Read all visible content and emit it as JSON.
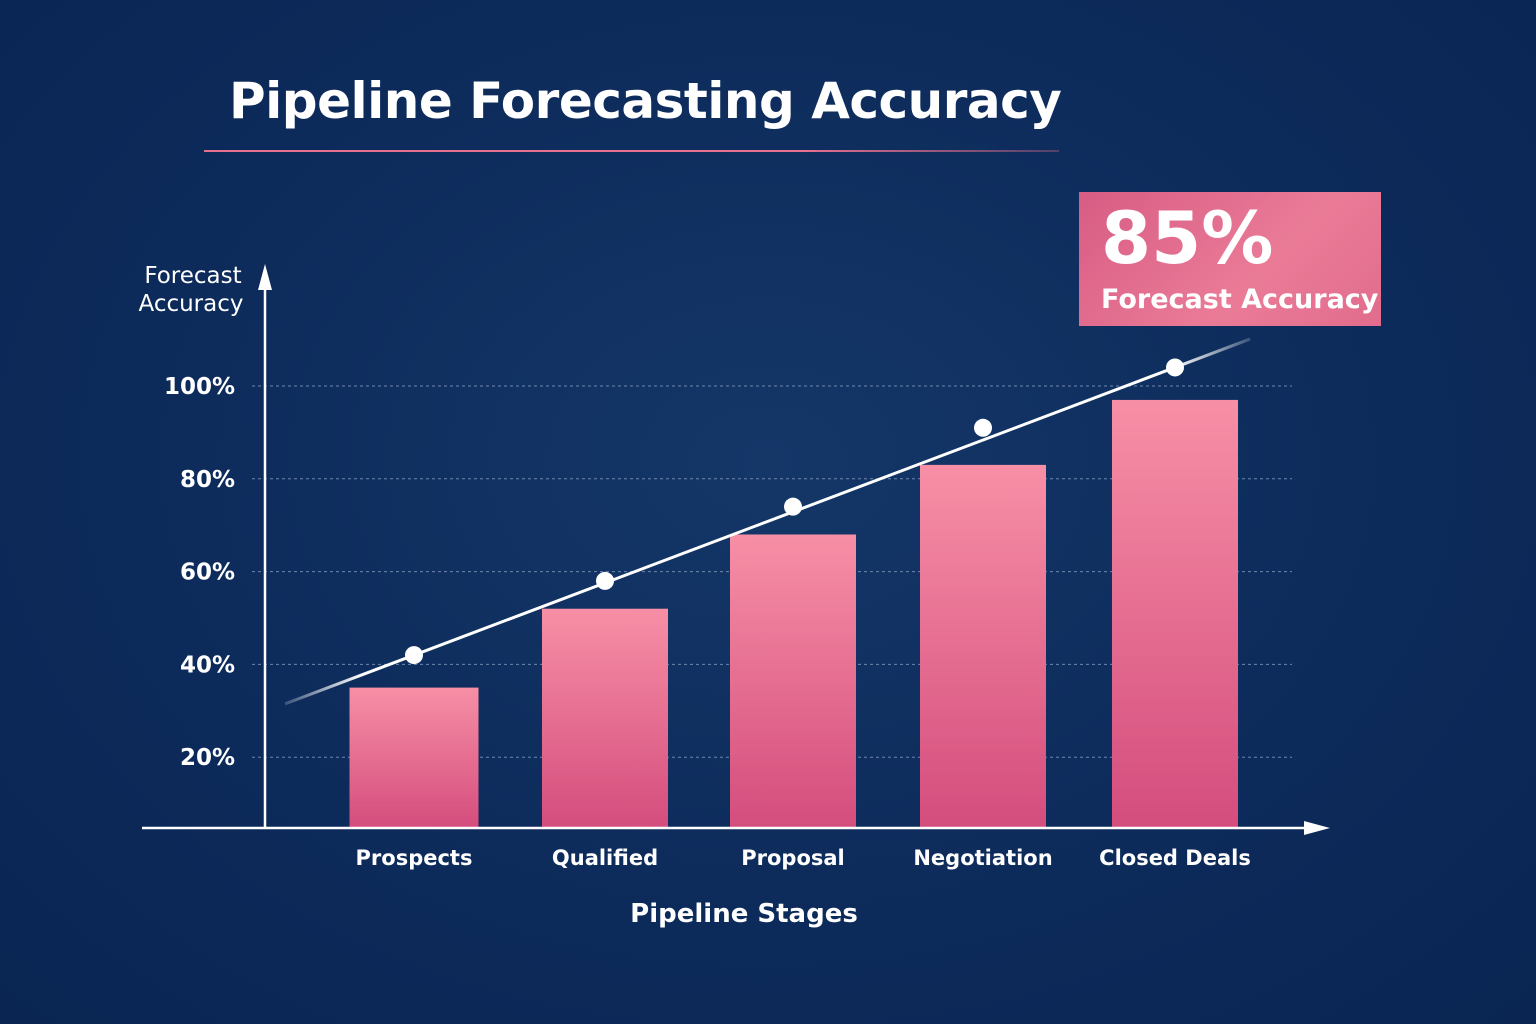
{
  "chart_data": {
    "type": "bar",
    "title": "Pipeline Forecasting Accuracy",
    "xlabel": "Pipeline Stages",
    "ylabel": "Forecast\nAccuracy",
    "ylabel_lines": [
      "Forecast",
      "Accuracy"
    ],
    "categories": [
      "Prospects",
      "Qualified",
      "Proposal",
      "Negotiation",
      "Closed Deals"
    ],
    "series": [
      {
        "type": "bar",
        "values": [
          35,
          52,
          68,
          83,
          97
        ]
      },
      {
        "type": "line",
        "values": [
          42,
          58,
          74,
          91,
          104
        ]
      }
    ],
    "yticks": [
      20,
      40,
      60,
      80,
      100
    ],
    "ytick_labels": [
      "20%",
      "40%",
      "60%",
      "80%",
      "100%"
    ],
    "ylim": [
      0,
      100
    ],
    "grid": true,
    "colors": {
      "background": "#0c2a5a",
      "bar_top": "#f78fa6",
      "bar_bottom": "#d44d7d",
      "line": "#ffffff",
      "accent": "#e8708f"
    },
    "callout": {
      "value": "85%",
      "label": "Forecast Accuracy"
    }
  }
}
